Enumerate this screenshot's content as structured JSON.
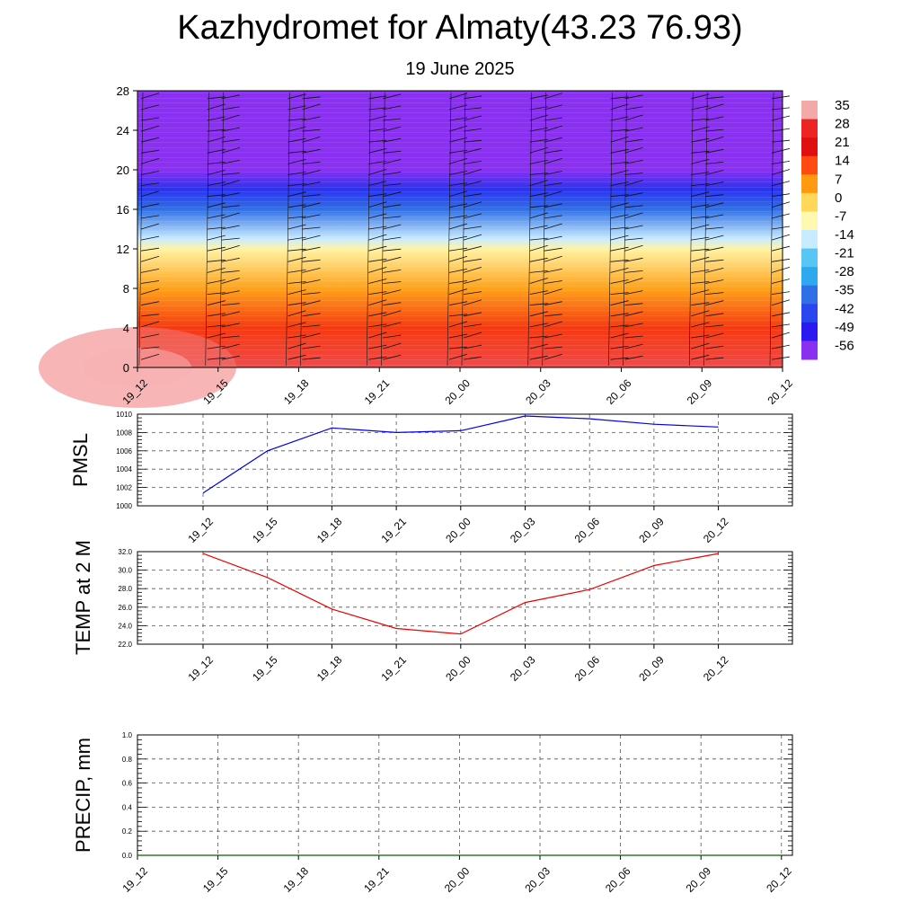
{
  "header": {
    "title": "Kazhydromet for Almaty(43.23 76.93)",
    "subtitle": "19 June 2025"
  },
  "chart_data": [
    {
      "type": "heatmap",
      "name": "vertical temperature cross-section with wind barbs",
      "x": [
        "19_12",
        "19_15",
        "19_18",
        "19_21",
        "20_00",
        "20_03",
        "20_06",
        "20_09",
        "20_12"
      ],
      "y_ticks": [
        0,
        4,
        8,
        12,
        16,
        20,
        24,
        28
      ],
      "ylim": [
        0,
        28
      ],
      "colorbar_labels": [
        "35",
        "28",
        "21",
        "14",
        "7",
        "0",
        "-7",
        "-14",
        "-21",
        "-28",
        "-35",
        "-42",
        "-49",
        "-56"
      ],
      "colorbar_colors": [
        "#f4a9a9",
        "#ed2424",
        "#e01010",
        "#ff4a10",
        "#ff9a10",
        "#ffd85a",
        "#fff8b0",
        "#c8ecff",
        "#58c6f4",
        "#2ea8ee",
        "#3070e6",
        "#2a46ee",
        "#2a1af0",
        "#8a30f0"
      ],
      "value_profile_by_height": [
        {
          "height": 0,
          "value": 30
        },
        {
          "height": 4,
          "value": 16
        },
        {
          "height": 8,
          "value": 6
        },
        {
          "height": 12,
          "value": -6
        },
        {
          "height": 13,
          "value": -14
        },
        {
          "height": 16,
          "value": -35
        },
        {
          "height": 18,
          "value": -45
        },
        {
          "height": 20,
          "value": -56
        },
        {
          "height": 22,
          "value": -60
        },
        {
          "height": 28,
          "value": -60
        }
      ],
      "grid": false
    },
    {
      "type": "line",
      "ylabel": "PMSL",
      "x": [
        "19_12",
        "19_15",
        "19_18",
        "19_21",
        "20_00",
        "20_03",
        "20_06",
        "20_09",
        "20_12"
      ],
      "series": [
        {
          "values": [
            1001.4,
            1006.0,
            1008.5,
            1008.0,
            1008.2,
            1009.8,
            1009.5,
            1008.9,
            1008.6
          ],
          "color": "#0000ee"
        }
      ],
      "ylim": [
        1000,
        1010
      ],
      "y_ticks": [
        "1000",
        "1002",
        "1004",
        "1006",
        "1008",
        "1010"
      ],
      "grid": true
    },
    {
      "type": "line",
      "ylabel": "TEMP at 2 M",
      "x": [
        "19_12",
        "19_15",
        "19_18",
        "19_21",
        "20_00",
        "20_03",
        "20_06",
        "20_09",
        "20_12"
      ],
      "series": [
        {
          "values": [
            31.8,
            29.2,
            25.8,
            23.7,
            23.1,
            26.5,
            27.9,
            30.5,
            31.8
          ],
          "color": "#ee0000"
        }
      ],
      "ylim": [
        22,
        32
      ],
      "y_ticks": [
        "22.0",
        "24.0",
        "26.0",
        "28.0",
        "30.0",
        "32.0"
      ],
      "grid": true
    },
    {
      "type": "line",
      "ylabel": "PRECIP, mm",
      "x": [
        "19_12",
        "19_15",
        "19_18",
        "19_21",
        "20_00",
        "20_03",
        "20_06",
        "20_09",
        "20_12"
      ],
      "series": [
        {
          "values": [
            0,
            0,
            0,
            0,
            0,
            0,
            0,
            0,
            0
          ],
          "color": "#006600"
        }
      ],
      "ylim": [
        0,
        1
      ],
      "y_ticks": [
        "0.0",
        "0.2",
        "0.4",
        "0.6",
        "0.8",
        "1.0"
      ],
      "grid": true
    }
  ]
}
